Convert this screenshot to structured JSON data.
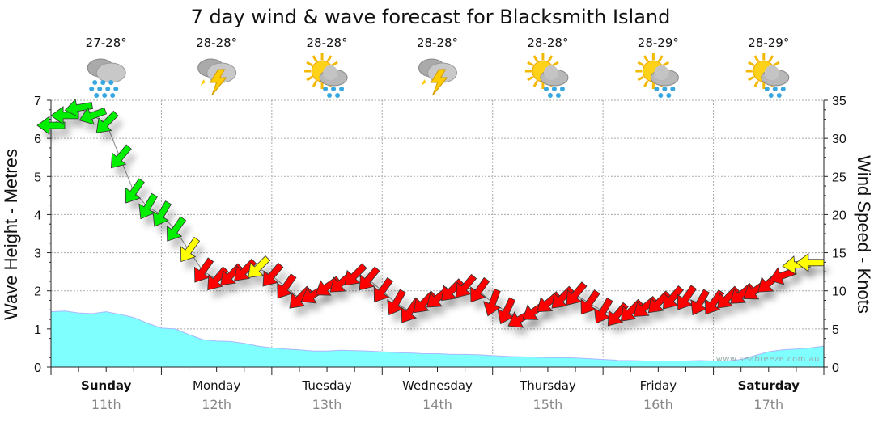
{
  "chart_data": {
    "type": "line",
    "title": "7 day wind & wave forecast for Blacksmith Island",
    "ylabel": "Wave Height - Metres",
    "y2label": "Wind Speed - Knots",
    "ylim": [
      0,
      7
    ],
    "y2lim": [
      0,
      35
    ],
    "yticks": [
      0,
      1,
      2,
      3,
      4,
      5,
      6,
      7
    ],
    "y2ticks": [
      0,
      5,
      10,
      15,
      20,
      25,
      30,
      35
    ],
    "grid": true,
    "interval_hours": 3,
    "watermark": "www.seabreeze.com.au",
    "days": [
      {
        "name": "Sunday",
        "date": "11th",
        "temp": "27-28°",
        "icon": "rain",
        "bold": true
      },
      {
        "name": "Monday",
        "date": "12th",
        "temp": "28-28°",
        "icon": "thunderstorm",
        "bold": false
      },
      {
        "name": "Tuesday",
        "date": "13th",
        "temp": "28-28°",
        "icon": "sun-cloud-rain",
        "bold": false
      },
      {
        "name": "Wednesday",
        "date": "14th",
        "temp": "28-28°",
        "icon": "thunderstorm",
        "bold": false
      },
      {
        "name": "Thursday",
        "date": "15th",
        "temp": "28-28°",
        "icon": "sun-cloud-rain",
        "bold": false
      },
      {
        "name": "Friday",
        "date": "16th",
        "temp": "28-29°",
        "icon": "sun-cloud-rain",
        "bold": false
      },
      {
        "name": "Saturday",
        "date": "17th",
        "temp": "28-29°",
        "icon": "sun-cloud-rain",
        "bold": true
      }
    ],
    "series": [
      {
        "name": "Wave height (m)",
        "type": "area",
        "color": "#80ffff",
        "values": [
          1.45,
          1.47,
          1.42,
          1.4,
          1.45,
          1.38,
          1.3,
          1.15,
          1.02,
          1.0,
          0.85,
          0.72,
          0.68,
          0.67,
          0.62,
          0.55,
          0.5,
          0.47,
          0.45,
          0.42,
          0.42,
          0.44,
          0.43,
          0.42,
          0.4,
          0.38,
          0.37,
          0.35,
          0.35,
          0.33,
          0.33,
          0.32,
          0.3,
          0.28,
          0.27,
          0.26,
          0.25,
          0.25,
          0.24,
          0.22,
          0.2,
          0.18,
          0.17,
          0.16,
          0.16,
          0.16,
          0.16,
          0.17,
          0.16,
          0.16,
          0.2,
          0.3,
          0.4,
          0.45,
          0.47,
          0.5,
          0.55
        ]
      },
      {
        "name": "Wind speed (kn)",
        "type": "arrows",
        "values": [
          31.7,
          33,
          34,
          33,
          32,
          27.5,
          23,
          21,
          20,
          18,
          15.3,
          12.6,
          11.5,
          12,
          12.6,
          13,
          12,
          10.5,
          9,
          9.5,
          10.5,
          11,
          12,
          11.5,
          10,
          8.4,
          7.3,
          8.4,
          9,
          10,
          10.5,
          10,
          8.4,
          7.3,
          6.3,
          7.3,
          8.4,
          9,
          9.5,
          8.4,
          7.3,
          6.8,
          7.3,
          7.8,
          8.4,
          9,
          9,
          8.4,
          8.4,
          9,
          9.5,
          10,
          11,
          12,
          13.4,
          13.7
        ],
        "direction_deg": [
          270,
          270,
          260,
          250,
          225,
          220,
          215,
          210,
          210,
          215,
          215,
          215,
          220,
          225,
          225,
          225,
          220,
          215,
          225,
          240,
          235,
          230,
          225,
          220,
          215,
          210,
          215,
          225,
          230,
          225,
          220,
          215,
          200,
          205,
          240,
          235,
          230,
          225,
          220,
          215,
          210,
          220,
          225,
          230,
          225,
          220,
          215,
          210,
          215,
          225,
          230,
          235,
          230,
          250,
          265,
          270
        ]
      }
    ],
    "wind_colors": {
      "strong": "#00ee00",
      "moderate": "#ffff00",
      "light": "#ff0000"
    },
    "wind_thresholds_kn": [
      13,
      17
    ]
  }
}
